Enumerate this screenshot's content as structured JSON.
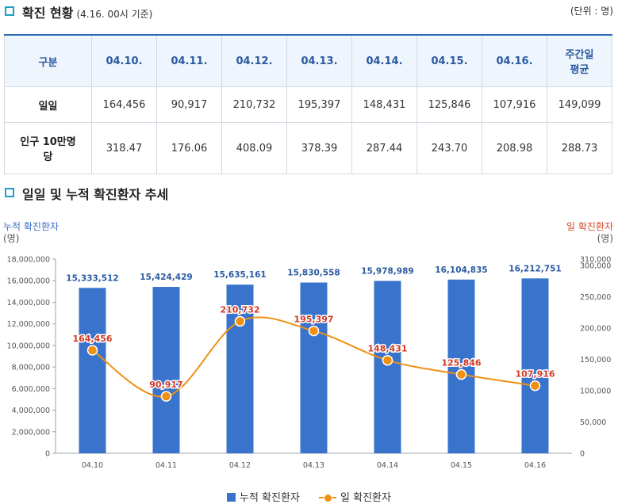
{
  "section1": {
    "title": "확진 현황",
    "subtitle": "(4.16. 00시 기준)",
    "unit": "(단위 : 명)"
  },
  "table": {
    "headers": [
      "구분",
      "04.10.",
      "04.11.",
      "04.12.",
      "04.13.",
      "04.14.",
      "04.15.",
      "04.16.",
      "주간일평균"
    ],
    "rows": [
      {
        "label": "일일",
        "values": [
          "164,456",
          "90,917",
          "210,732",
          "195,397",
          "148,431",
          "125,846",
          "107,916",
          "149,099"
        ]
      },
      {
        "label": "인구 10만명당",
        "values": [
          "318.47",
          "176.06",
          "408.09",
          "378.39",
          "287.44",
          "243.70",
          "208.98",
          "288.73"
        ]
      }
    ]
  },
  "section2": {
    "title": "일일 및 누적 확진환자 추세"
  },
  "colors": {
    "bar": "#3973cc",
    "line": "#ef9012",
    "line_label": "#d23a26",
    "bar_label": "#2a5aa0",
    "left_axis_title": "#3b6fc0",
    "right_axis_title": "#d24a2a"
  },
  "chart_data": {
    "type": "bar",
    "categories": [
      "04.10",
      "04.11",
      "04.12",
      "04.13",
      "04.14",
      "04.15",
      "04.16"
    ],
    "series": [
      {
        "name": "누적 확진환자",
        "type": "bar",
        "axis": "left",
        "values": [
          15333512,
          15424429,
          15635161,
          15830558,
          15978989,
          16104835,
          16212751
        ],
        "labels": [
          "15,333,512",
          "15,424,429",
          "15,635,161",
          "15,830,558",
          "15,978,989",
          "16,104,835",
          "16,212,751"
        ]
      },
      {
        "name": "일 확진환자",
        "type": "line",
        "axis": "right",
        "values": [
          164456,
          90917,
          210732,
          195397,
          148431,
          125846,
          107916
        ],
        "labels": [
          "164,456",
          "90,917",
          "210,732",
          "195,397",
          "148,431",
          "125,846",
          "107,916"
        ]
      }
    ],
    "y_left": {
      "title": "누적 확진환자",
      "unit": "(명)",
      "ylim": [
        0,
        18000000
      ],
      "ticks": [
        0,
        2000000,
        4000000,
        6000000,
        8000000,
        10000000,
        12000000,
        14000000,
        16000000,
        18000000
      ],
      "tick_labels": [
        "0",
        "2,000,000",
        "4,000,000",
        "6,000,000",
        "8,000,000",
        "10,000,000",
        "12,000,000",
        "14,000,000",
        "16,000,000",
        "18,000,000"
      ]
    },
    "y_right": {
      "title": "일 확진환자",
      "unit": "(명)",
      "ylim": [
        0,
        310000
      ],
      "ticks": [
        0,
        50000,
        100000,
        150000,
        200000,
        250000,
        300000,
        310000
      ],
      "tick_labels": [
        "0",
        "50,000",
        "100,000",
        "150,000",
        "200,000",
        "250,000",
        "300,000",
        "310,000"
      ]
    },
    "legend": [
      "누적 확진환자",
      "일 확진환자"
    ],
    "legend_position": "bottom"
  }
}
